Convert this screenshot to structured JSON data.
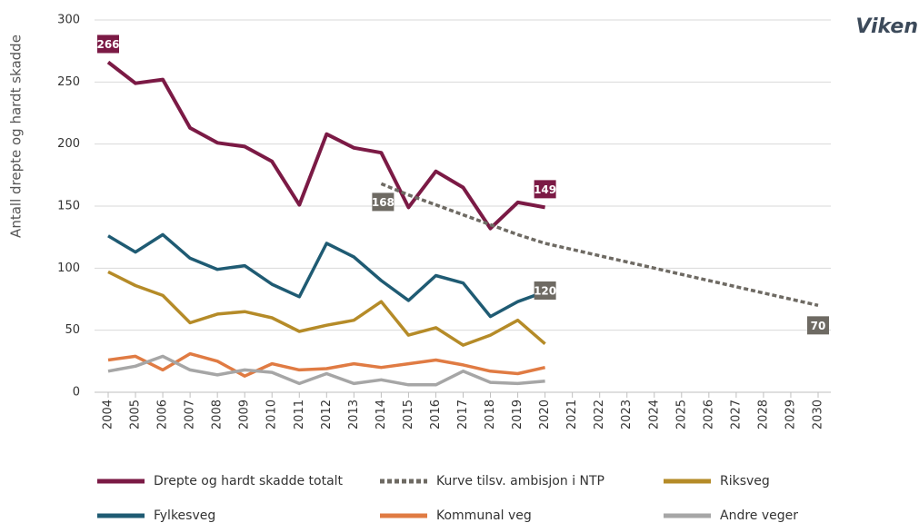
{
  "chart_data": {
    "type": "line",
    "title": "Viken",
    "y_label": "Antall drepte og hardt skadde",
    "categories": [
      "2004",
      "2005",
      "2006",
      "2007",
      "2008",
      "2009",
      "2010",
      "2011",
      "2012",
      "2013",
      "2014",
      "2015",
      "2016",
      "2017",
      "2018",
      "2019",
      "2020",
      "2021",
      "2022",
      "2023",
      "2024",
      "2025",
      "2026",
      "2027",
      "2028",
      "2029",
      "2030"
    ],
    "series": [
      {
        "name": "Drepte og hardt skadde totalt",
        "color": "#7b1a45",
        "values": [
          266,
          249,
          252,
          213,
          201,
          198,
          186,
          151,
          208,
          197,
          193,
          149,
          178,
          165,
          132,
          153,
          149,
          null,
          null,
          null,
          null,
          null,
          null,
          null,
          null,
          null,
          null
        ]
      },
      {
        "name": "Kurve tilsv. ambisjon i NTP",
        "color": "#6e6a63",
        "dashed": true,
        "values": [
          null,
          null,
          null,
          null,
          null,
          null,
          null,
          null,
          null,
          null,
          168,
          159,
          151,
          143,
          135,
          127,
          120,
          115,
          110,
          105,
          100,
          95,
          90,
          85,
          80,
          75,
          70
        ]
      },
      {
        "name": "Riksveg",
        "color": "#b58b28",
        "values": [
          97,
          86,
          78,
          56,
          63,
          65,
          60,
          49,
          54,
          58,
          73,
          46,
          52,
          38,
          46,
          58,
          39,
          null,
          null,
          null,
          null,
          null,
          null,
          null,
          null,
          null,
          null
        ]
      },
      {
        "name": "Fylkesveg",
        "color": "#1f5b73",
        "values": [
          126,
          113,
          127,
          108,
          99,
          102,
          87,
          77,
          120,
          109,
          90,
          74,
          94,
          88,
          61,
          73,
          81,
          null,
          null,
          null,
          null,
          null,
          null,
          null,
          null,
          null,
          null
        ]
      },
      {
        "name": "Kommunal veg",
        "color": "#e07b43",
        "values": [
          26,
          29,
          18,
          31,
          25,
          13,
          23,
          18,
          19,
          23,
          20,
          23,
          26,
          22,
          17,
          15,
          20,
          null,
          null,
          null,
          null,
          null,
          null,
          null,
          null,
          null,
          null
        ]
      },
      {
        "name": "Andre veger",
        "color": "#a6a6a6",
        "values": [
          17,
          21,
          29,
          18,
          14,
          18,
          16,
          7,
          15,
          7,
          10,
          6,
          6,
          17,
          8,
          7,
          9,
          null,
          null,
          null,
          null,
          null,
          null,
          null,
          null,
          null,
          null
        ]
      }
    ],
    "ylim": [
      0,
      300
    ],
    "yticks": [
      0,
      50,
      100,
      150,
      200,
      250,
      300
    ],
    "grid": true
  }
}
